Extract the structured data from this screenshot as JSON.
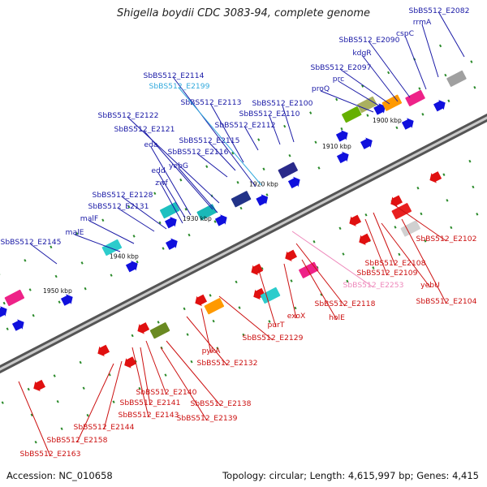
{
  "title": "Shigella boydii CDC 3083-94, complete genome",
  "footer": {
    "accession": "Accession: NC_010658",
    "summary": "Topology: circular; Length: 4,615,997 bp; Genes: 4,415"
  },
  "kbp_ticks": [
    "1900 kbp",
    "1910 kbp",
    "1920 kbp",
    "1930 kbp",
    "1940 kbp",
    "1950 kbp"
  ],
  "upper_labels": [
    "SbBS512_E2082",
    "rrmA",
    "cspC",
    "SbBS512_E2090",
    "kdgR",
    "SbBS512_E2097",
    "prc",
    "proQ",
    "SbBS512_E2100",
    "SbBS512_E2110",
    "SbBS512_E2112",
    "SbBS512_E2113",
    "SbBS512_E2114",
    "SbBS512_E2199",
    "SbBS512_E2122",
    "SbBS512_E2121",
    "eda",
    "SbBS512_E2115",
    "SbBS512_E2116",
    "yebG",
    "edd",
    "zwf",
    "SbBS512_E2128",
    "SbBS512_E2131",
    "malF",
    "malE",
    "SbBS512_E2145"
  ],
  "lower_labels": [
    "SbBS512_E2102",
    "SbBS512_E2108",
    "SbBS512_E2109",
    "yebU",
    "SbBS512_E2104",
    "SbBS512_E2253",
    "SbBS512_E2118",
    "holE",
    "exoX",
    "purT",
    "SbBS512_E2129",
    "pykA",
    "SbBS512_E2132",
    "SbBS512_E2140",
    "SbBS512_E2138",
    "SbBS512_E2141",
    "SbBS512_E2139",
    "SbBS512_E2143",
    "SbBS512_E2144",
    "SbBS512_E2158",
    "SbBS512_E2163"
  ],
  "colors": {
    "upper_label": "#1a1aa6",
    "lower_label": "#cc1111",
    "pseudo_upper": "#33aadd",
    "pseudo_lower": "#ee88bb",
    "backbone": "#7a7a7a",
    "tick": "#2a8a2a"
  }
}
